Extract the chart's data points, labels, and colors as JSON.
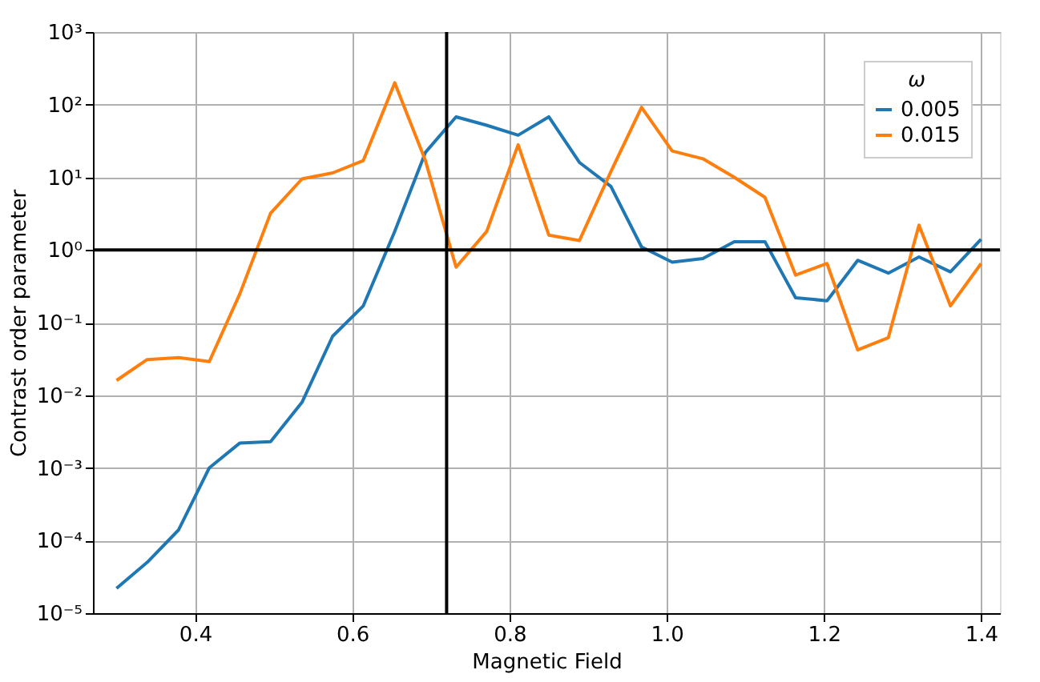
{
  "chart_data": {
    "type": "line",
    "xlabel": "Magnetic Field",
    "ylabel": "Contrast order parameter",
    "legend_title": "ω",
    "x": [
      0.3,
      0.339,
      0.379,
      0.418,
      0.457,
      0.496,
      0.536,
      0.575,
      0.614,
      0.654,
      0.693,
      0.732,
      0.771,
      0.811,
      0.85,
      0.889,
      0.929,
      0.968,
      1.007,
      1.046,
      1.086,
      1.125,
      1.164,
      1.204,
      1.243,
      1.282,
      1.321,
      1.361,
      1.4
    ],
    "series": [
      {
        "name": "0.005",
        "color": "#1f77b4",
        "values": [
          2.2e-05,
          5e-05,
          0.00014,
          0.001,
          0.0022,
          0.0023,
          0.008,
          0.065,
          0.17,
          1.8,
          22,
          68,
          52,
          38,
          68,
          16,
          7.5,
          1.1,
          0.68,
          0.76,
          1.3,
          1.3,
          0.22,
          0.2,
          0.72,
          0.48,
          0.8,
          0.5,
          1.4
        ]
      },
      {
        "name": "0.015",
        "color": "#ff7f0e",
        "values": [
          0.016,
          0.031,
          0.033,
          0.029,
          0.25,
          3.2,
          9.5,
          11.5,
          17,
          200,
          17,
          0.58,
          1.8,
          28,
          1.6,
          1.35,
          12,
          92,
          23,
          18,
          10,
          5.3,
          0.45,
          0.65,
          0.042,
          0.062,
          2.2,
          0.17,
          0.65
        ]
      }
    ],
    "xlim": [
      0.27,
      1.424
    ],
    "xticks": [
      {
        "value": 0.4,
        "label": "0.4"
      },
      {
        "value": 0.6,
        "label": "0.6"
      },
      {
        "value": 0.8,
        "label": "0.8"
      },
      {
        "value": 1.0,
        "label": "1.0"
      },
      {
        "value": 1.2,
        "label": "1.2"
      },
      {
        "value": 1.4,
        "label": "1.4"
      }
    ],
    "ylim": [
      1e-05,
      1000
    ],
    "log": true,
    "yticks": [
      {
        "value": 1e-05,
        "label": "10⁻⁵"
      },
      {
        "value": 0.0001,
        "label": "10⁻⁴"
      },
      {
        "value": 0.001,
        "label": "10⁻³"
      },
      {
        "value": 0.01,
        "label": "10⁻²"
      },
      {
        "value": 0.1,
        "label": "10⁻¹"
      },
      {
        "value": 1,
        "label": "10⁰"
      },
      {
        "value": 10,
        "label": "10¹"
      },
      {
        "value": 100,
        "label": "10²"
      },
      {
        "value": 1000,
        "label": "10³"
      }
    ],
    "ref_lines": [
      {
        "axis": "x",
        "value": 0.72,
        "color": "#000000"
      },
      {
        "axis": "y",
        "value": 1,
        "color": "#000000"
      }
    ],
    "grid": true,
    "legend": "top right",
    "marker": "none",
    "line_style": "solid"
  }
}
